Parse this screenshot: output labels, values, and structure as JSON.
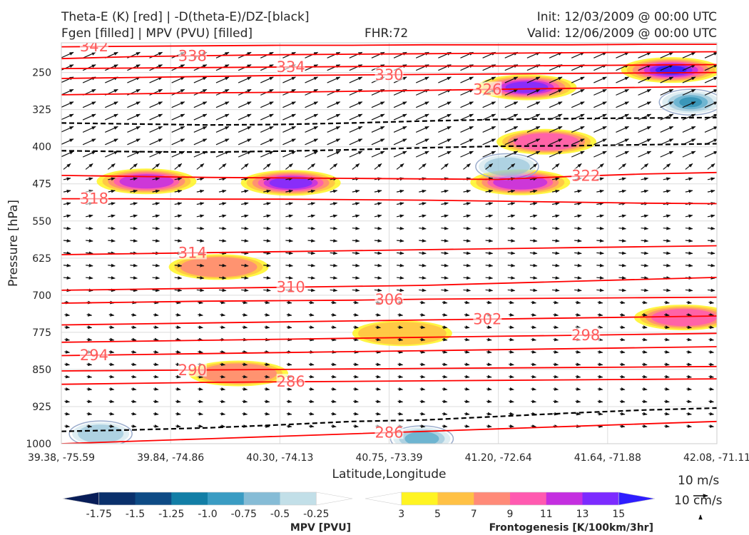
{
  "header": {
    "title_line1": "Theta-E (K) [red] | -D(theta-E)/DZ-[black]",
    "title_line2": "Fgen [filled] | MPV (PVU) [filled]",
    "fhr": "FHR:72",
    "init": "Init: 12/03/2009 @ 00:00 UTC",
    "valid": "Valid: 12/06/2009 @ 00:00 UTC"
  },
  "colors": {
    "theta_e": "#ff0000",
    "dtheta_dz": "#000000",
    "mpv_contour": "#9aaccc",
    "grid": "#dcdcdc",
    "label": "#ff5a5a",
    "plot_bg": "#ffffff"
  },
  "chart_data": {
    "type": "cross-section",
    "xlabel": "Latitude,Longitude",
    "ylabel": "Pressure [hPa]",
    "y_axis": {
      "scale": "pressure (inverted)",
      "range": [
        1000,
        190
      ]
    },
    "xticks": [
      "39.38, -75.59",
      "39.84, -74.86",
      "40.30, -74.13",
      "40.75, -73.39",
      "41.20, -72.64",
      "41.64, -71.88",
      "42.08, -71.11"
    ],
    "yticks": [
      250,
      325,
      400,
      475,
      550,
      625,
      700,
      775,
      850,
      925,
      1000
    ],
    "grid": true,
    "theta_e_contours": [
      {
        "label": "342",
        "values": [
          198,
          197,
          196,
          195,
          195,
          194,
          194,
          194,
          193,
          193
        ]
      },
      {
        "label": "338",
        "values": [
          222,
          218,
          216,
          214,
          213,
          212,
          211,
          210,
          209,
          208
        ]
      },
      {
        "label": "334",
        "values": [
          242,
          241,
          240,
          239,
          238,
          237,
          237,
          236,
          235,
          234
        ]
      },
      {
        "label": "330",
        "values": [
          262,
          260,
          258,
          256,
          255,
          254,
          253,
          252,
          251,
          250
        ]
      },
      {
        "label": "326",
        "values": [
          295,
          293,
          291,
          290,
          288,
          286,
          284,
          282,
          280,
          278
        ]
      },
      {
        "label": "322",
        "values": [
          458,
          460,
          462,
          463,
          464,
          465,
          466,
          460,
          455,
          452
        ]
      },
      {
        "label": "318",
        "values": [
          505,
          505,
          506,
          506,
          507,
          508,
          510,
          512,
          514,
          515
        ]
      },
      {
        "label": "314",
        "values": [
          618,
          616,
          614,
          612,
          610,
          608,
          606,
          604,
          602,
          600
        ]
      },
      {
        "label": "310",
        "values": [
          690,
          688,
          686,
          684,
          682,
          680,
          676,
          672,
          668,
          664
        ]
      },
      {
        "label": "306",
        "values": [
          716,
          714,
          712,
          711,
          710,
          708,
          707,
          706,
          705,
          704
        ]
      },
      {
        "label": "302",
        "values": [
          760,
          758,
          756,
          754,
          752,
          750,
          748,
          746,
          744,
          742
        ]
      },
      {
        "label": "298",
        "values": [
          795,
          793,
          791,
          789,
          787,
          785,
          783,
          781,
          779,
          777
        ]
      },
      {
        "label": "294",
        "values": [
          822,
          820,
          818,
          816,
          814,
          812,
          810,
          808,
          806,
          804
        ]
      },
      {
        "label": "290",
        "values": [
          853,
          852,
          851,
          850,
          849,
          848,
          847,
          846,
          845,
          844
        ]
      },
      {
        "label": "286",
        "values": [
          880,
          878,
          876,
          875,
          874,
          873,
          872,
          871,
          870,
          869
        ]
      },
      {
        "label": "286",
        "values": [
          1000,
          995,
          990,
          985,
          980,
          975,
          970,
          965,
          960,
          955
        ]
      }
    ],
    "dtheta_dz_zero_contours": [
      {
        "values": [
          352,
          354,
          356,
          355,
          352,
          348,
          345,
          343,
          342,
          341
        ]
      },
      {
        "values": [
          408,
          410,
          411,
          409,
          406,
          402,
          399,
          398,
          396,
          394
        ]
      },
      {
        "values": [
          975,
          972,
          968,
          962,
          955,
          952,
          945,
          938,
          932,
          928
        ]
      }
    ],
    "frontogenesis_maxima": [
      {
        "x": 0.35,
        "p": 473,
        "value": 13
      },
      {
        "x": 0.13,
        "p": 470,
        "value": 11
      },
      {
        "x": 0.7,
        "p": 472,
        "value": 11
      },
      {
        "x": 0.71,
        "p": 280,
        "value": 13
      },
      {
        "x": 0.93,
        "p": 245,
        "value": 15
      },
      {
        "x": 0.95,
        "p": 745,
        "value": 9
      },
      {
        "x": 0.24,
        "p": 643,
        "value": 7
      },
      {
        "x": 0.27,
        "p": 858,
        "value": 7
      },
      {
        "x": 0.52,
        "p": 777,
        "value": 5
      },
      {
        "x": 0.74,
        "p": 390,
        "value": 9
      }
    ],
    "mpv_minima": [
      {
        "x": 0.68,
        "p": 440,
        "value": -0.5
      },
      {
        "x": 0.96,
        "p": 310,
        "value": -1.0
      },
      {
        "x": 0.06,
        "p": 980,
        "value": -0.5
      },
      {
        "x": 0.55,
        "p": 990,
        "value": -0.75
      }
    ]
  },
  "colorbars": {
    "mpv": {
      "title": "MPV [PVU]",
      "ticks": [
        "-1.75",
        "-1.5",
        "-1.25",
        "-1.0",
        "-0.75",
        "-0.5",
        "-0.25"
      ],
      "colors": [
        "#081d58",
        "#0a306b",
        "#0e4b85",
        "#127ea6",
        "#3a9cc3",
        "#86bcd6",
        "#c2dfe8",
        "#ffffff"
      ]
    },
    "fgen": {
      "title": "Frontogenesis [K/100km/3hr]",
      "ticks": [
        "3",
        "5",
        "7",
        "9",
        "11",
        "13",
        "15"
      ],
      "colors": [
        "#ffffff",
        "#fff422",
        "#ffc145",
        "#ff8a78",
        "#ff5ab0",
        "#c42fe0",
        "#7c2bff",
        "#2e1dff"
      ]
    }
  },
  "reference_vector": {
    "horizontal": "10 m/s",
    "vertical": "10 cm/s"
  }
}
